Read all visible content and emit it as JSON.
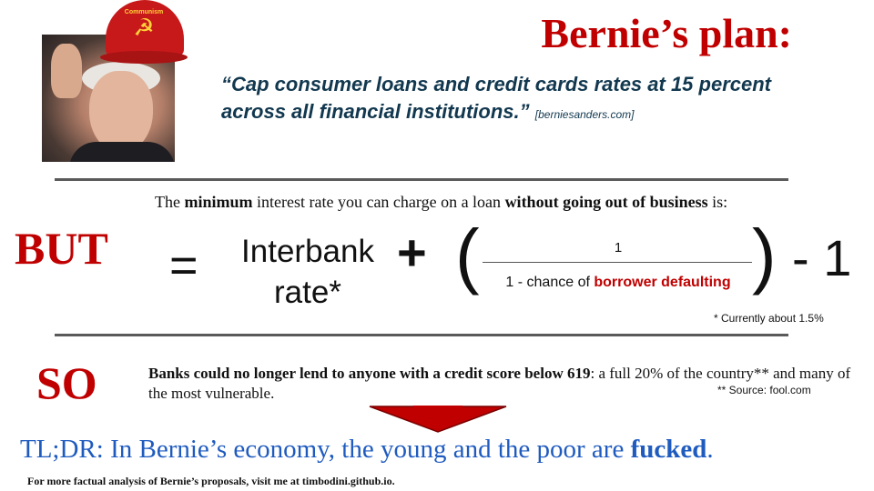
{
  "header": {
    "title": "Bernie’s plan:",
    "cap_text": "Communism",
    "cap_emblem": "☭"
  },
  "quote": {
    "text": "“Cap consumer loans and credit cards rates at 15 percent across all financial institutions.”",
    "source": "[berniesanders.com]"
  },
  "formula": {
    "intro_pre": "The ",
    "intro_bold1": "minimum",
    "intro_mid": " interest rate you can charge on a loan ",
    "intro_bold2": "without going out of business",
    "intro_post": " is:",
    "but_label": "BUT",
    "equals": "=",
    "term1_line1": "Interbank",
    "term1_line2": "rate*",
    "plus": "+",
    "lparen": "(",
    "numerator": "1",
    "denominator_pre": "1 - chance of ",
    "denominator_red": "borrower defaulting",
    "rparen": ")",
    "minus_one": "- 1",
    "footnote": "* Currently about 1.5%"
  },
  "conclusion": {
    "so_label": "SO",
    "bold_text": "Banks could no longer lend to anyone with a credit score below 619",
    "rest_text": ": a full 20% of the country** and many of the most vulnerable.",
    "footnote": "** Source: fool.com"
  },
  "tldr": {
    "pre": "TL;DR: In Bernie’s economy, the young and the poor are ",
    "bold": "fucked",
    "post": "."
  },
  "footer": {
    "text": "For more factual analysis of Bernie’s proposals, visit me at timbodini.github.io."
  },
  "colors": {
    "red": "#c00000",
    "navy": "#12384f",
    "blue": "#1f5bbf"
  }
}
